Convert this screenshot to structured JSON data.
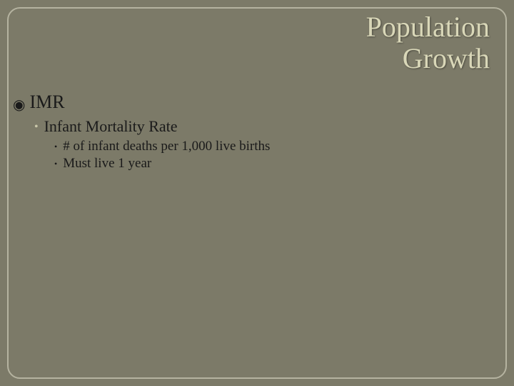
{
  "colors": {
    "slide_background": "#7c7a68",
    "frame_border": "#b5b3a0",
    "title_text": "#d9d7b8",
    "body_text": "#1a1a1a",
    "level2_bullet": "#c9c7aa"
  },
  "title": {
    "line1": "Population",
    "line2": "Growth",
    "fontsize": 40
  },
  "bullets": {
    "level1": {
      "text": "IMR",
      "fontsize": 26,
      "bullet_glyph": "◉"
    },
    "level2": {
      "text": "Infant Mortality Rate",
      "fontsize": 22,
      "bullet_glyph": "•"
    },
    "level3a": {
      "text": "# of infant deaths per 1,000 live births",
      "fontsize": 19,
      "bullet_glyph": "•"
    },
    "level3b": {
      "text": "Must live 1 year",
      "fontsize": 19,
      "bullet_glyph": "•"
    }
  }
}
